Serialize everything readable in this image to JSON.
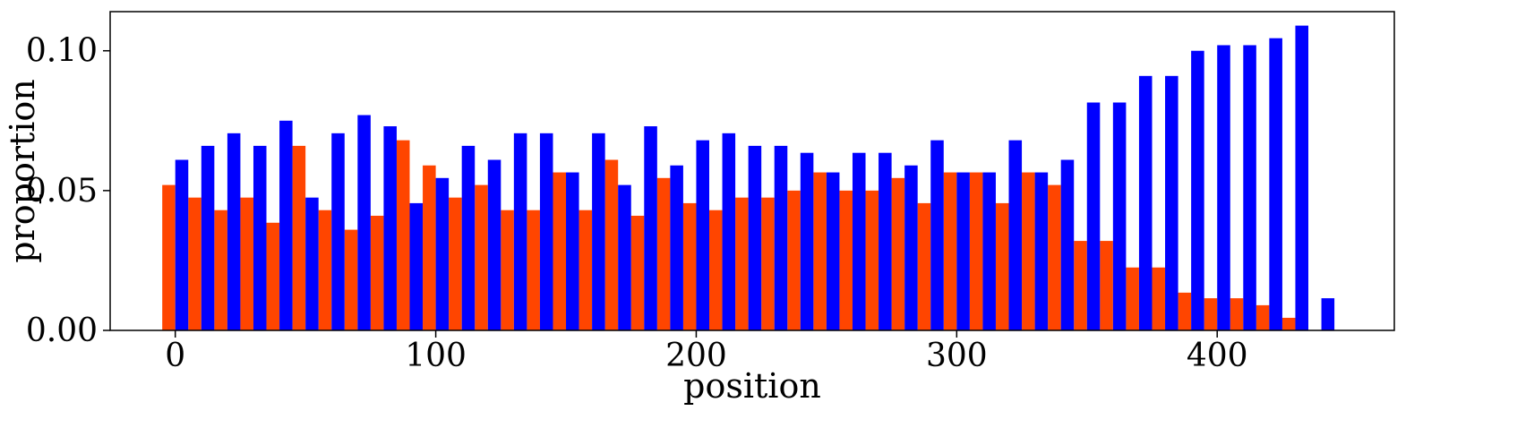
{
  "chart_data": {
    "type": "bar",
    "title": "",
    "xlabel": "position",
    "ylabel": "proportion",
    "xlim": [
      -25,
      468
    ],
    "ylim": [
      0,
      0.114
    ],
    "x_ticks": [
      0,
      100,
      200,
      300,
      400
    ],
    "x_tick_labels": [
      "0",
      "100",
      "200",
      "300",
      "400"
    ],
    "y_ticks": [
      0.0,
      0.05,
      0.1
    ],
    "y_tick_labels": [
      "0.00",
      "0.05",
      "0.10"
    ],
    "bin_width": 10,
    "x": [
      0,
      10,
      20,
      30,
      40,
      50,
      60,
      70,
      80,
      90,
      100,
      110,
      120,
      130,
      140,
      150,
      160,
      170,
      180,
      190,
      200,
      210,
      220,
      230,
      240,
      250,
      260,
      270,
      280,
      290,
      300,
      310,
      320,
      330,
      340,
      350,
      360,
      370,
      380,
      390,
      400,
      410,
      420,
      430,
      440
    ],
    "series": [
      {
        "color": "#ff4500",
        "values": [
          0.052,
          0.0475,
          0.043,
          0.0475,
          0.0385,
          0.066,
          0.043,
          0.036,
          0.041,
          0.068,
          0.059,
          0.0475,
          0.052,
          0.043,
          0.043,
          0.0565,
          0.043,
          0.061,
          0.041,
          0.0545,
          0.0455,
          0.043,
          0.0475,
          0.0475,
          0.05,
          0.0565,
          0.05,
          0.05,
          0.0545,
          0.0455,
          0.0565,
          0.0565,
          0.0455,
          0.0565,
          0.052,
          0.032,
          0.032,
          0.0225,
          0.0225,
          0.0135,
          0.0115,
          0.0115,
          0.009,
          0.0045,
          0
        ]
      },
      {
        "color": "#0000ff",
        "values": [
          0.061,
          0.066,
          0.0705,
          0.066,
          0.075,
          0.0475,
          0.0705,
          0.077,
          0.073,
          0.0455,
          0.0545,
          0.066,
          0.061,
          0.0705,
          0.0705,
          0.0565,
          0.0705,
          0.052,
          0.073,
          0.059,
          0.068,
          0.0705,
          0.066,
          0.066,
          0.0635,
          0.0565,
          0.0635,
          0.0635,
          0.059,
          0.068,
          0.0565,
          0.0565,
          0.068,
          0.0565,
          0.061,
          0.0815,
          0.0815,
          0.091,
          0.091,
          0.1,
          0.102,
          0.102,
          0.1045,
          0.109,
          0.0115
        ]
      }
    ],
    "grid": false,
    "legend": "none"
  }
}
